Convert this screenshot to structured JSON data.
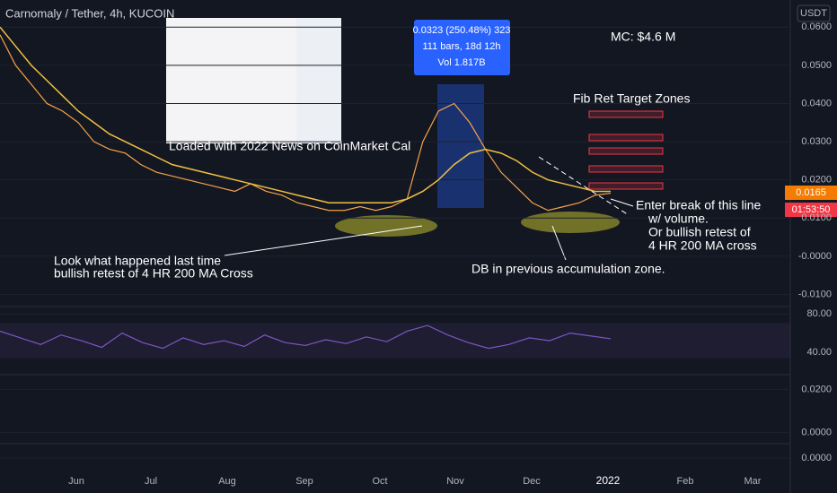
{
  "chart_data": {
    "type": "line",
    "title": "Carnomaly / Tether, 4h, KUCOIN",
    "currency": "USDT",
    "annotations": {
      "measure": [
        "0.0323 (250.48%) 323",
        "111 bars, 18d 12h",
        "Vol 1.817B"
      ],
      "mc": "MC: $4.6 M",
      "fib": "Fib Ret Target Zones",
      "news": "Loaded with 2022 News on CoinMarket Cal",
      "look": [
        "Look what happened last time",
        "bullish retest of 4 HR 200 MA Cross"
      ],
      "db": "DB in previous accumulation zone.",
      "enter": [
        "Enter break of this line",
        "w/ volume.",
        "Or bullish retest of",
        "4 HR 200 MA cross"
      ]
    },
    "last_price": "0.0165",
    "countdown": "01:53:50",
    "months": [
      "Jun",
      "Jul",
      "Aug",
      "Sep",
      "Oct",
      "Nov",
      "Dec",
      "2022",
      "Feb",
      "Mar"
    ],
    "series": [
      {
        "color": "#f5a34a",
        "values": [
          0.058,
          0.05,
          0.045,
          0.04,
          0.038,
          0.035,
          0.03,
          0.028,
          0.027,
          0.024,
          0.022,
          0.021,
          0.02,
          0.019,
          0.018,
          0.017,
          0.019,
          0.017,
          0.016,
          0.014,
          0.013,
          0.012,
          0.012,
          0.013,
          0.012,
          0.013,
          0.015,
          0.03,
          0.038,
          0.04,
          0.035,
          0.028,
          0.022,
          0.018,
          0.014,
          0.012,
          0.013,
          0.014,
          0.016,
          0.0165
        ]
      },
      {
        "color": "#f0c040",
        "values": [
          0.06,
          0.055,
          0.05,
          0.046,
          0.042,
          0.038,
          0.035,
          0.032,
          0.03,
          0.028,
          0.026,
          0.024,
          0.023,
          0.022,
          0.021,
          0.02,
          0.019,
          0.018,
          0.017,
          0.016,
          0.015,
          0.014,
          0.014,
          0.014,
          0.014,
          0.014,
          0.015,
          0.017,
          0.02,
          0.024,
          0.027,
          0.028,
          0.027,
          0.025,
          0.022,
          0.02,
          0.019,
          0.018,
          0.017,
          0.017
        ]
      }
    ],
    "ylim": [
      -0.0127,
      0.0671
    ],
    "yticks": [
      {
        "value": 0.06,
        "label": "0.0600"
      },
      {
        "value": 0.05,
        "label": "0.0500"
      },
      {
        "value": 0.04,
        "label": "0.0400"
      },
      {
        "value": 0.03,
        "label": "0.0300"
      },
      {
        "value": 0.02,
        "label": "0.0200"
      },
      {
        "value": 0.01,
        "label": "0.0100"
      },
      {
        "value": 0,
        "label": "-0.0000"
      },
      {
        "value": -0.01,
        "label": "-0.0100"
      }
    ],
    "rsi": {
      "color": "#7e57c2",
      "values": [
        62,
        55,
        48,
        58,
        52,
        45,
        60,
        50,
        44,
        55,
        48,
        52,
        46,
        58,
        50,
        47,
        53,
        49,
        56,
        51,
        62,
        68,
        58,
        50,
        44,
        48,
        55,
        52,
        60,
        57,
        54
      ],
      "ylim": [
        22,
        85
      ],
      "yticks": [
        {
          "value": 80,
          "label": "80.00"
        },
        {
          "value": 40,
          "label": "40.00"
        }
      ]
    },
    "osc": {
      "ylim": [
        -0.004,
        0.026
      ],
      "yticks": [
        {
          "value": 0.02,
          "label": "0.0200"
        },
        {
          "value": 0,
          "label": "0.0000"
        }
      ]
    },
    "osc2": {
      "yticks": [
        {
          "value": 0,
          "label": "0.0000"
        }
      ]
    }
  }
}
